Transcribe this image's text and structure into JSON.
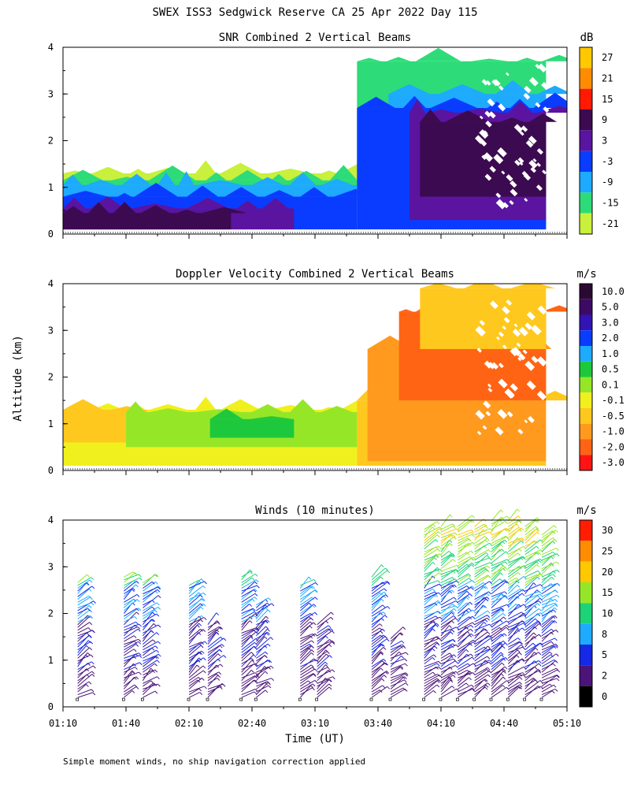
{
  "figure": {
    "title": "SWEX ISS3 Sedgwick Reserve CA  25 Apr 2022 Day 115",
    "ylabel": "Altitude (km)",
    "xlabel": "Time (UT)",
    "footnote": "Simple moment winds, no ship navigation correction applied"
  },
  "chart_data": [
    {
      "type": "heatmap",
      "title": "SNR Combined 2 Vertical Beams",
      "units": "dB",
      "ylabel": "Altitude (km)",
      "ylim": [
        0,
        4
      ],
      "yticks": [
        0,
        1,
        2,
        3,
        4
      ],
      "xlim": [
        "01:10",
        "05:10"
      ],
      "colorbar_ticks": [
        "27",
        "21",
        "15",
        "9",
        "3",
        "-3",
        "-9",
        "-15",
        "-21"
      ],
      "colorbar_colors": [
        "#ffc800",
        "#ff8c00",
        "#ff1a00",
        "#3c0a50",
        "#5a14a0",
        "#0a3cff",
        "#1eaaff",
        "#2ddc78",
        "#c8f03c"
      ],
      "layers": [
        {
          "label": "-21",
          "color": "#c8f03c",
          "t_start": "01:10",
          "t_end": "03:30",
          "alt_bottom": 0.1,
          "alt_top": 1.3
        },
        {
          "label": "-15",
          "color": "#2ddc78",
          "t_start": "01:10",
          "t_end": "03:30",
          "alt_bottom": 0.1,
          "alt_top": 1.15
        },
        {
          "label": "-9",
          "color": "#1eaaff",
          "t_start": "01:10",
          "t_end": "03:30",
          "alt_bottom": 0.1,
          "alt_top": 1.05
        },
        {
          "label": "-3",
          "color": "#0a3cff",
          "t_start": "01:10",
          "t_end": "03:30",
          "alt_bottom": 0.1,
          "alt_top": 0.8
        },
        {
          "label": "3",
          "color": "#5a14a0",
          "t_start": "01:10",
          "t_end": "03:00",
          "alt_bottom": 0.1,
          "alt_top": 0.55
        },
        {
          "label": "9",
          "color": "#3c0a50",
          "t_start": "01:10",
          "t_end": "02:30",
          "alt_bottom": 0.1,
          "alt_top": 0.45
        },
        {
          "label": "-15",
          "color": "#2ddc78",
          "t_start": "03:30",
          "t_end": "05:00",
          "alt_bottom": 0.1,
          "alt_top": 3.7
        },
        {
          "label": "-9",
          "color": "#1eaaff",
          "t_start": "03:45",
          "t_end": "05:00",
          "alt_bottom": 0.1,
          "alt_top": 3.0
        },
        {
          "label": "-3",
          "color": "#0a3cff",
          "t_start": "03:30",
          "t_end": "05:00",
          "alt_bottom": 0.1,
          "alt_top": 2.7
        },
        {
          "label": "3",
          "color": "#5a14a0",
          "t_start": "03:55",
          "t_end": "05:00",
          "alt_bottom": 0.3,
          "alt_top": 2.6
        },
        {
          "label": "9",
          "color": "#3c0a50",
          "t_start": "04:00",
          "t_end": "05:00",
          "alt_bottom": 0.8,
          "alt_top": 2.4
        }
      ]
    },
    {
      "type": "heatmap",
      "title": "Doppler Velocity Combined 2 Vertical Beams",
      "units": "m/s",
      "ylim": [
        0,
        4
      ],
      "yticks": [
        0,
        1,
        2,
        3,
        4
      ],
      "xlim": [
        "01:10",
        "05:10"
      ],
      "colorbar_ticks": [
        "10.0",
        "5.0",
        "3.0",
        "2.0",
        "1.0",
        "0.5",
        "0.1",
        "-0.1",
        "-0.5",
        "-1.0",
        "-2.0",
        "-3.0"
      ],
      "colorbar_colors": [
        "#2a0a32",
        "#3c0a64",
        "#3214b4",
        "#0a3cff",
        "#1eaaff",
        "#1ec83c",
        "#96e628",
        "#f0f01e",
        "#ffc81e",
        "#ff9a1e",
        "#ff6414",
        "#ff1414"
      ],
      "layers": [
        {
          "label": "-0.1",
          "color": "#f0f01e",
          "t_start": "01:10",
          "t_end": "03:30",
          "alt_bottom": 0.1,
          "alt_top": 1.3
        },
        {
          "label": "-0.5",
          "color": "#ffc81e",
          "t_start": "01:10",
          "t_end": "01:50",
          "alt_bottom": 0.6,
          "alt_top": 1.3
        },
        {
          "label": "0.1",
          "color": "#96e628",
          "t_start": "01:40",
          "t_end": "03:30",
          "alt_bottom": 0.5,
          "alt_top": 1.25
        },
        {
          "label": "0.5",
          "color": "#1ec83c",
          "t_start": "02:20",
          "t_end": "03:00",
          "alt_bottom": 0.7,
          "alt_top": 1.1
        },
        {
          "label": "-0.5",
          "color": "#ffc81e",
          "t_start": "03:30",
          "t_end": "05:00",
          "alt_bottom": 0.1,
          "alt_top": 1.5
        },
        {
          "label": "-1.0",
          "color": "#ff9a1e",
          "t_start": "03:35",
          "t_end": "05:00",
          "alt_bottom": 0.2,
          "alt_top": 2.6
        },
        {
          "label": "-2.0",
          "color": "#ff6414",
          "t_start": "03:50",
          "t_end": "05:00",
          "alt_bottom": 1.5,
          "alt_top": 3.4
        },
        {
          "label": "-0.5",
          "color": "#ffc81e",
          "t_start": "04:00",
          "t_end": "05:00",
          "alt_bottom": 2.6,
          "alt_top": 3.9
        }
      ]
    },
    {
      "type": "scatter",
      "title": "Winds (10 minutes)",
      "units": "m/s",
      "ylim": [
        0,
        4
      ],
      "yticks": [
        0,
        1,
        2,
        3,
        4
      ],
      "x_tick_labels": [
        "01:10",
        "01:40",
        "02:10",
        "02:40",
        "03:10",
        "03:40",
        "04:10",
        "04:40",
        "05:10"
      ],
      "colorbar_ticks": [
        "30",
        "25",
        "20",
        "15",
        "10",
        "8",
        "5",
        "2",
        "0"
      ],
      "colorbar_colors": [
        "#ff1e00",
        "#ff8c00",
        "#ffc800",
        "#96e628",
        "#1ed278",
        "#1eaaff",
        "#1428e6",
        "#4b1478",
        "#000000"
      ],
      "profiles": [
        {
          "time": "01:17",
          "top_km": 2.7
        },
        {
          "time": "01:39",
          "top_km": 2.8
        },
        {
          "time": "01:48",
          "top_km": 2.7
        },
        {
          "time": "02:10",
          "top_km": 2.6
        },
        {
          "time": "02:19",
          "top_km": 1.8
        },
        {
          "time": "02:35",
          "top_km": 2.8
        },
        {
          "time": "02:42",
          "top_km": 2.2
        },
        {
          "time": "03:03",
          "top_km": 2.6
        },
        {
          "time": "03:11",
          "top_km": 1.8
        },
        {
          "time": "03:37",
          "top_km": 2.8
        },
        {
          "time": "03:46",
          "top_km": 1.5
        },
        {
          "time": "04:02",
          "top_km": 3.8
        },
        {
          "time": "04:10",
          "top_km": 3.9
        },
        {
          "time": "04:18",
          "top_km": 3.9
        },
        {
          "time": "04:26",
          "top_km": 3.9
        },
        {
          "time": "04:34",
          "top_km": 4.0
        },
        {
          "time": "04:42",
          "top_km": 4.0
        },
        {
          "time": "04:50",
          "top_km": 3.9
        },
        {
          "time": "04:58",
          "top_km": 3.7
        }
      ]
    }
  ]
}
